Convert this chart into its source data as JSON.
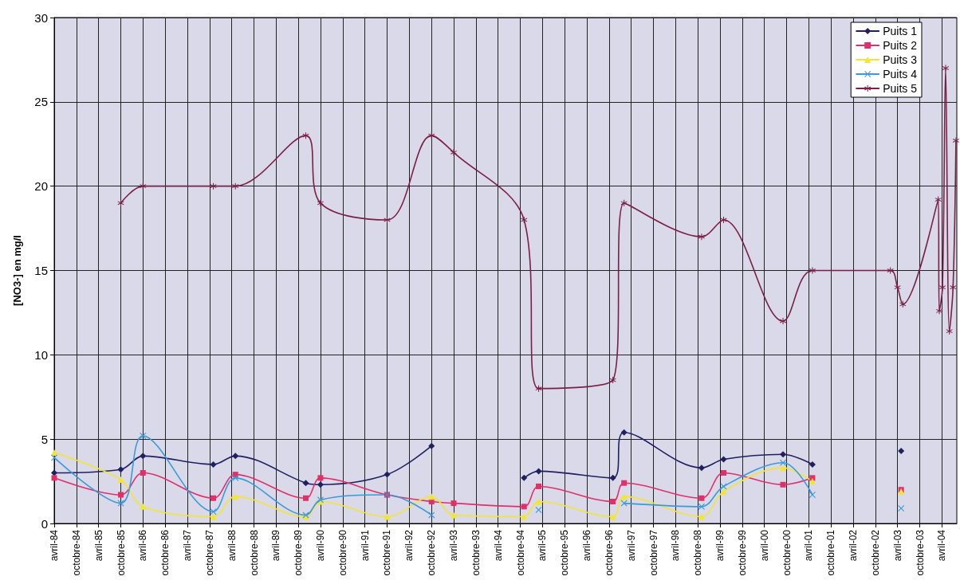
{
  "chart_data": {
    "type": "line",
    "ylabel": "[NO3-] en mg/l",
    "x": [
      "1984-04-01",
      "1985-10-01",
      "1986-04-01",
      "1987-11-01",
      "1988-05-01",
      "1989-12-01",
      "1990-04-01",
      "1991-10-01",
      "1992-10-01",
      "1993-04-01",
      "1994-11-01",
      "1995-03-01",
      "1996-11-01",
      "1997-02-01",
      "1998-11-01",
      "1999-05-01",
      "2000-09-01",
      "2001-05-01",
      "2002-05-01",
      "2003-05-01"
    ],
    "series": [
      {
        "name": "Puits 1",
        "color": "#1f2060",
        "marker": "diamond",
        "values": [
          3.0,
          3.2,
          4.0,
          3.5,
          4.0,
          2.4,
          2.3,
          2.9,
          4.6,
          null,
          2.7,
          3.1,
          2.7,
          5.4,
          3.3,
          3.8,
          4.1,
          3.5,
          null,
          4.3
        ]
      },
      {
        "name": "Puits 2",
        "color": "#e0306a",
        "marker": "square",
        "values": [
          2.7,
          1.7,
          3.0,
          1.5,
          2.9,
          1.5,
          2.7,
          1.7,
          1.3,
          1.2,
          1.0,
          2.2,
          1.3,
          2.4,
          1.5,
          3.0,
          2.3,
          2.7,
          null,
          2.0
        ]
      },
      {
        "name": "Puits 3",
        "color": "#f2e632",
        "marker": "triangle",
        "values": [
          4.2,
          2.6,
          1.0,
          0.4,
          1.6,
          0.4,
          1.3,
          0.4,
          1.6,
          0.5,
          0.4,
          1.3,
          0.4,
          1.6,
          0.4,
          1.9,
          3.3,
          2.5,
          null,
          1.9
        ]
      },
      {
        "name": "Puits 4",
        "color": "#3a9ad8",
        "marker": "cross",
        "values": [
          3.9,
          1.2,
          5.2,
          0.7,
          2.7,
          0.5,
          1.4,
          1.7,
          0.5,
          null,
          null,
          0.8,
          null,
          1.2,
          1.0,
          2.2,
          3.6,
          1.7,
          null,
          0.9
        ]
      },
      {
        "name": "Puits 5",
        "color": "#7a1f45",
        "marker": "star",
        "x": [
          "1985-10-01",
          "1986-04-01",
          "1987-11-01",
          "1988-05-01",
          "1989-12-01",
          "1990-04-01",
          "1991-10-01",
          "1992-10-01",
          "1993-04-01",
          "1994-11-01",
          "1995-03-01",
          "1996-11-01",
          "1997-02-01",
          "1998-11-01",
          "1999-05-01",
          "2000-09-01",
          "2001-05-01",
          "2003-02-01",
          "2003-04-01",
          "2003-05-15",
          "2004-03-01",
          "2004-03-10",
          "2004-04-05",
          "2004-05-01",
          "2004-06-01",
          "2004-07-01",
          "2004-07-25"
        ],
        "values": [
          19,
          20,
          20,
          20,
          23,
          19,
          18,
          23,
          22,
          18,
          8.0,
          8.5,
          19,
          17,
          18,
          12,
          15,
          15,
          14,
          13,
          19.2,
          12.6,
          14,
          27,
          11.4,
          14,
          22.7
        ]
      }
    ],
    "xlim": [
      "1984-04-01",
      "2004-08-01"
    ],
    "xticks": [
      {
        "value": "1984-04-01",
        "label": "avril-84"
      },
      {
        "value": "1984-10-01",
        "label": "octobre-84"
      },
      {
        "value": "1985-04-01",
        "label": "avril-85"
      },
      {
        "value": "1985-10-01",
        "label": "octobre-85"
      },
      {
        "value": "1986-04-01",
        "label": "avril-86"
      },
      {
        "value": "1986-10-01",
        "label": "octobre-86"
      },
      {
        "value": "1987-04-01",
        "label": "avril-87"
      },
      {
        "value": "1987-10-01",
        "label": "octobre-87"
      },
      {
        "value": "1988-04-01",
        "label": "avril-88"
      },
      {
        "value": "1988-10-01",
        "label": "octobre-88"
      },
      {
        "value": "1989-04-01",
        "label": "avril-89"
      },
      {
        "value": "1989-10-01",
        "label": "octobre-89"
      },
      {
        "value": "1990-04-01",
        "label": "avril-90"
      },
      {
        "value": "1990-10-01",
        "label": "octobre-90"
      },
      {
        "value": "1991-04-01",
        "label": "avril-91"
      },
      {
        "value": "1991-10-01",
        "label": "octobre-91"
      },
      {
        "value": "1992-04-01",
        "label": "avril-92"
      },
      {
        "value": "1992-10-01",
        "label": "octobre-92"
      },
      {
        "value": "1993-04-01",
        "label": "avril-93"
      },
      {
        "value": "1993-10-01",
        "label": "octobre-93"
      },
      {
        "value": "1994-04-01",
        "label": "avril-94"
      },
      {
        "value": "1994-10-01",
        "label": "octobre-94"
      },
      {
        "value": "1995-04-01",
        "label": "avril-95"
      },
      {
        "value": "1995-10-01",
        "label": "octobre-95"
      },
      {
        "value": "1996-04-01",
        "label": "avril-96"
      },
      {
        "value": "1996-10-01",
        "label": "octobre-96"
      },
      {
        "value": "1997-04-01",
        "label": "avril-97"
      },
      {
        "value": "1997-10-01",
        "label": "octobre-97"
      },
      {
        "value": "1998-04-01",
        "label": "avril-98"
      },
      {
        "value": "1998-10-01",
        "label": "octobre-98"
      },
      {
        "value": "1999-04-01",
        "label": "avril-99"
      },
      {
        "value": "1999-10-01",
        "label": "octobre-99"
      },
      {
        "value": "2000-04-01",
        "label": "avril-00"
      },
      {
        "value": "2000-10-01",
        "label": "octobre-00"
      },
      {
        "value": "2001-04-01",
        "label": "avril-01"
      },
      {
        "value": "2001-10-01",
        "label": "octobre-01"
      },
      {
        "value": "2002-04-01",
        "label": "avril-02"
      },
      {
        "value": "2002-10-01",
        "label": "octobre-02"
      },
      {
        "value": "2003-04-01",
        "label": "avril-03"
      },
      {
        "value": "2003-10-01",
        "label": "octobre-03"
      },
      {
        "value": "2004-04-01",
        "label": "avril-04"
      }
    ],
    "ylim": [
      0,
      30
    ],
    "yticks": [
      0,
      5,
      10,
      15,
      20,
      25,
      30
    ],
    "grid": true,
    "legend": "top right",
    "line_style": "solid"
  }
}
